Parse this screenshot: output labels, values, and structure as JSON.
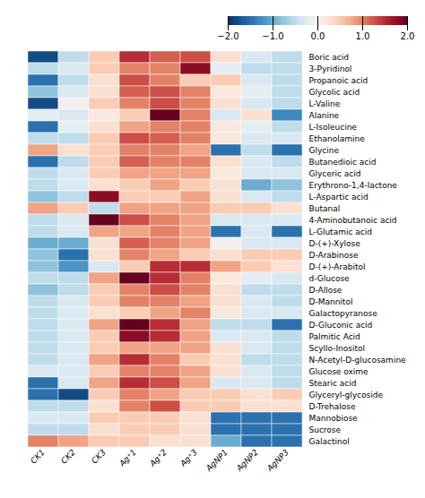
{
  "chart_data": {
    "type": "heatmap",
    "rows": [
      "Boric acid",
      "3-Pyridinol",
      "Propanoic acid",
      "Glycolic acid",
      "L-Valine",
      "Alanine",
      "L-Isoleucine",
      "Ethanolamine",
      "Glycine",
      "Butanedioic acid",
      "Glyceric acid",
      "Erythrono-1,4-lactone",
      "L-Aspartic acid",
      "Butanal",
      "4-Aminobutanoic acid",
      "L-Glutamic acid",
      "D-(+)-Xylose",
      "D-Arabinose",
      "D-(+)-Arabitol",
      "d-Glucose",
      "D-Allose",
      "D-Mannitol",
      "Galactopyranose",
      "D-Gluconic acid",
      "Palmitic Acid",
      "Scyllo-Inositol",
      "N-Acetyl-D-glucosamine",
      "Glucose oxime",
      "Stearic acid",
      "Glyceryl-glycoside",
      "D-Trehalose",
      "Mannobiose",
      "Sucrose",
      "Galactinol"
    ],
    "cols": [
      "CK1",
      "CK2",
      "CK3",
      "Ag⁺1",
      "Ag⁺2",
      "Ag⁺3",
      "AgNP1",
      "AgNP2",
      "AgNP3"
    ],
    "values": [
      [
        -1.8,
        -0.5,
        0.5,
        1.5,
        1.2,
        1.3,
        0.3,
        -0.3,
        -0.5
      ],
      [
        -0.5,
        -0.3,
        0.5,
        1.0,
        1.0,
        1.8,
        -0.2,
        -0.5,
        -0.5
      ],
      [
        -1.5,
        -0.5,
        0.3,
        1.3,
        1.0,
        0.5,
        0.5,
        -0.3,
        -0.5
      ],
      [
        -0.8,
        -0.3,
        0.3,
        1.2,
        1.3,
        1.0,
        0.2,
        -0.2,
        -0.5
      ],
      [
        -1.8,
        0.0,
        0.5,
        1.0,
        1.3,
        1.0,
        0.3,
        -0.3,
        -0.5
      ],
      [
        -0.2,
        -0.3,
        0.2,
        0.5,
        2.0,
        1.0,
        -0.3,
        0.3,
        -1.3
      ],
      [
        -1.5,
        -0.2,
        0.3,
        0.8,
        1.0,
        1.0,
        0.2,
        -0.2,
        -0.5
      ],
      [
        -0.5,
        -0.5,
        0.5,
        1.3,
        1.2,
        1.0,
        0.2,
        -0.3,
        -0.3
      ],
      [
        0.8,
        0.3,
        0.5,
        1.0,
        1.0,
        0.8,
        -1.5,
        -0.5,
        -1.5
      ],
      [
        -1.5,
        -0.5,
        0.5,
        1.2,
        1.0,
        1.0,
        0.3,
        -0.3,
        -0.5
      ],
      [
        -0.5,
        -0.3,
        0.5,
        0.8,
        0.8,
        0.8,
        0.2,
        -0.3,
        -0.3
      ],
      [
        -0.5,
        -0.3,
        0.3,
        0.5,
        0.8,
        0.5,
        0.3,
        -1.0,
        -0.8
      ],
      [
        -0.8,
        -0.5,
        1.8,
        0.5,
        0.5,
        0.8,
        0.3,
        -0.3,
        -0.5
      ],
      [
        0.8,
        0.5,
        -0.5,
        0.8,
        0.8,
        0.8,
        0.5,
        0.5,
        0.3
      ],
      [
        -0.5,
        -0.3,
        2.0,
        1.3,
        1.0,
        0.8,
        -0.3,
        -0.3,
        -0.3
      ],
      [
        -0.5,
        -0.3,
        0.8,
        0.8,
        1.0,
        0.8,
        -1.5,
        -0.3,
        -1.5
      ],
      [
        -1.0,
        -1.0,
        0.3,
        1.2,
        1.0,
        0.8,
        0.0,
        -0.3,
        -0.3
      ],
      [
        -0.8,
        -1.5,
        0.3,
        1.0,
        0.8,
        0.5,
        0.3,
        0.5,
        0.5
      ],
      [
        -0.8,
        -1.2,
        -0.3,
        0.5,
        1.5,
        1.5,
        0.8,
        0.5,
        0.3
      ],
      [
        -0.5,
        -0.5,
        0.8,
        2.0,
        1.5,
        1.0,
        0.2,
        -0.2,
        -0.3
      ],
      [
        -0.8,
        -0.5,
        0.5,
        1.0,
        1.3,
        1.0,
        0.3,
        -0.5,
        -0.5
      ],
      [
        -0.5,
        -0.3,
        0.5,
        1.0,
        1.0,
        0.8,
        0.3,
        -0.3,
        -0.5
      ],
      [
        -0.5,
        -0.3,
        0.3,
        0.5,
        0.8,
        1.0,
        0.2,
        -0.3,
        -0.3
      ],
      [
        -0.5,
        -0.3,
        0.8,
        2.0,
        1.5,
        0.8,
        -0.5,
        -0.5,
        -1.5
      ],
      [
        -0.5,
        -0.3,
        0.5,
        1.8,
        1.5,
        0.8,
        -0.3,
        -0.3,
        -0.5
      ],
      [
        -0.5,
        -0.3,
        0.5,
        0.8,
        0.8,
        0.8,
        0.3,
        -0.3,
        -0.5
      ],
      [
        -0.5,
        -0.3,
        0.8,
        1.5,
        1.0,
        0.5,
        0.3,
        -0.5,
        -0.5
      ],
      [
        -0.3,
        -0.3,
        0.5,
        1.0,
        1.0,
        0.8,
        0.3,
        -0.3,
        -0.5
      ],
      [
        -1.5,
        -0.3,
        0.8,
        1.5,
        1.3,
        0.8,
        -0.3,
        -0.3,
        -0.5
      ],
      [
        -1.5,
        -1.8,
        0.5,
        1.0,
        0.8,
        0.5,
        0.5,
        0.3,
        0.5
      ],
      [
        -0.5,
        -0.5,
        0.3,
        1.0,
        1.3,
        0.5,
        0.5,
        0.3,
        0.3
      ],
      [
        -0.3,
        -0.3,
        0.5,
        0.5,
        0.5,
        0.3,
        -1.5,
        -1.5,
        -1.5
      ],
      [
        -0.5,
        -0.5,
        0.3,
        0.5,
        0.5,
        0.3,
        -1.5,
        -1.5,
        -1.5
      ],
      [
        1.0,
        0.8,
        0.5,
        0.5,
        0.3,
        0.3,
        -1.0,
        -1.5,
        -1.5
      ]
    ],
    "color": "RdBu_r",
    "colorbar_range": [
      -2,
      2
    ],
    "colorbar_ticks": [
      2,
      1,
      0,
      -1,
      -2
    ]
  }
}
